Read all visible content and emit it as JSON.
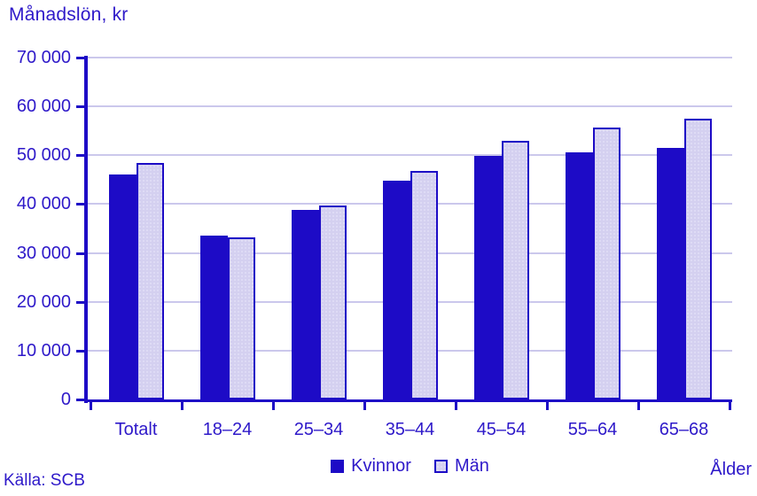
{
  "colors": {
    "primary_dark_blue": "#1D0BC6",
    "light_bar_fill": "#D4D0F0",
    "gridline": "#CBC8EC",
    "text_blue": "#2E19C9",
    "background": "#FFFFFF"
  },
  "chart_data": {
    "type": "bar",
    "title": "Månadslön, kr",
    "xlabel": "Ålder",
    "ylabel": "Månadslön, kr",
    "source": "Källa: SCB",
    "categories": [
      "Totalt",
      "18–24",
      "25–34",
      "35–44",
      "45–54",
      "55–64",
      "65–68"
    ],
    "series": [
      {
        "name": "Kvinnor",
        "color": "#1D0BC6",
        "values": [
          46100,
          33600,
          38800,
          44800,
          49900,
          50600,
          51500
        ]
      },
      {
        "name": "Män",
        "color": "#D4D0F0",
        "values": [
          48400,
          33100,
          39700,
          46700,
          53000,
          55700,
          57500
        ]
      }
    ],
    "ylim": [
      0,
      70000
    ],
    "ytick_step": 10000,
    "ytick_labels": [
      "0",
      "10 000",
      "20 000",
      "30 000",
      "40 000",
      "50 000",
      "60 000",
      "70 000"
    ],
    "grid": true,
    "legend_position": "bottom"
  }
}
